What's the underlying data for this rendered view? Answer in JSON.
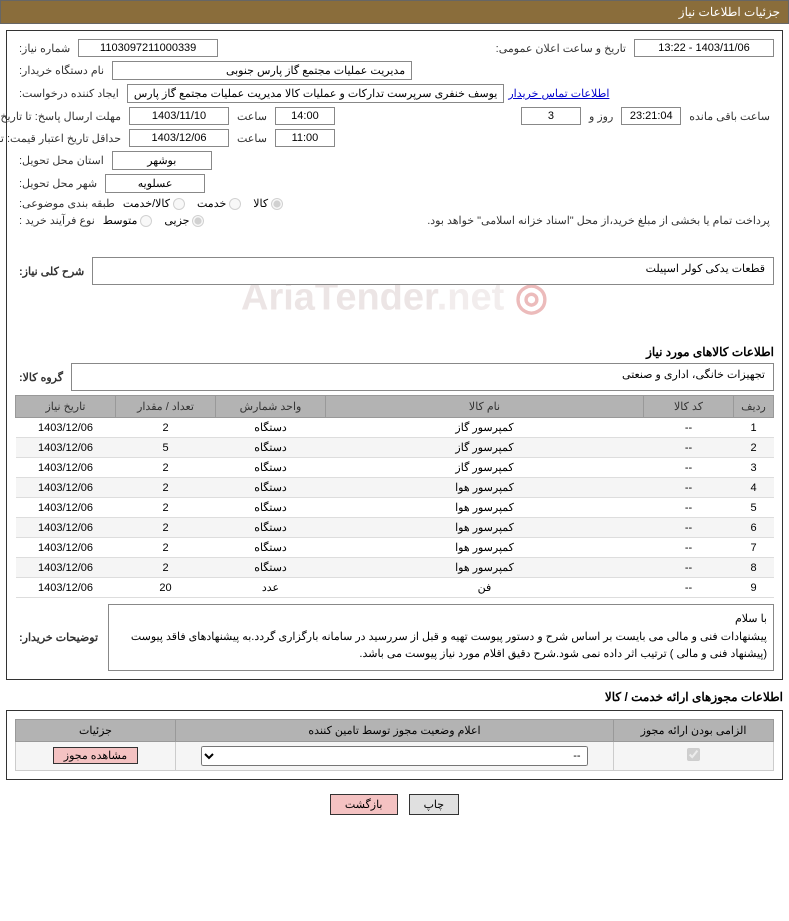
{
  "header": {
    "title": "جزئیات اطلاعات نیاز"
  },
  "form": {
    "need_number_label": "شماره نیاز:",
    "need_number": "1103097211000339",
    "announce_datetime_label": "تاریخ و ساعت اعلان عمومی:",
    "announce_datetime": "1403/11/06 - 13:22",
    "buyer_device_label": "نام دستگاه خریدار:",
    "buyer_device": "مدیریت عملیات مجتمع گاز پارس جنوبی",
    "requester_label": "ایجاد کننده درخواست:",
    "requester": "یوسف خنفری سرپرست تدارکات و عملیات کالا مدیریت عملیات مجتمع گاز پارس",
    "contact_link": "اطلاعات تماس خریدار",
    "deadline_label": "مهلت ارسال پاسخ: تا تاریخ:",
    "deadline_date": "1403/11/10",
    "time_label": "ساعت",
    "deadline_time": "14:00",
    "days_remain": "3",
    "days_label": "روز و",
    "hours_remain": "23:21:04",
    "hours_label": "ساعت باقی مانده",
    "min_validity_label": "حداقل تاریخ اعتبار قیمت: تا تاریخ:",
    "min_validity_date": "1403/12/06",
    "min_validity_time": "11:00",
    "province_label": "استان محل تحویل:",
    "province": "بوشهر",
    "city_label": "شهر محل تحویل:",
    "city": "عسلویه",
    "category_label": "طبقه بندی موضوعی:",
    "category_opts": {
      "goods": "کالا",
      "service": "خدمت",
      "goods_service": "کالا/خدمت"
    },
    "buy_process_label": "نوع فرآیند خرید :",
    "buy_process_opts": {
      "partial": "جزیی",
      "medium": "متوسط"
    },
    "treasury_note": "پرداخت تمام یا بخشی از مبلغ خرید،از محل \"اسناد خزانه اسلامی\" خواهد بود.",
    "overall_desc_label": "شرح کلی نیاز:",
    "overall_desc": "قطعات یدکی کولر اسپیلت",
    "goods_info_title": "اطلاعات کالاهای مورد نیاز",
    "goods_group_label": "گروه کالا:",
    "goods_group": "تجهیزات خانگی، اداری و صنعتی",
    "buyer_notes_label": "توضیحات خریدار:",
    "buyer_notes": "با سلام\nپیشنهادات فنی و مالی می بایست بر اساس شرح و دستور پیوست تهیه و قبل از سررسید در سامانه بارگزاری گردد.به پیشنهادهای فاقد پیوست (پیشنهاد فنی و مالی ) ترتیب اثر داده نمی شود.شرح دقیق اقلام مورد نیاز پیوست می باشد."
  },
  "watermark_text": "AriaTender.net",
  "table": {
    "headers": {
      "row": "ردیف",
      "code": "کد کالا",
      "name": "نام کالا",
      "unit": "واحد شمارش",
      "qty": "تعداد / مقدار",
      "date": "تاریخ نیاز"
    },
    "rows": [
      {
        "n": "1",
        "code": "--",
        "name": "کمپرسور گاز",
        "unit": "دستگاه",
        "qty": "2",
        "date": "1403/12/06"
      },
      {
        "n": "2",
        "code": "--",
        "name": "کمپرسور گاز",
        "unit": "دستگاه",
        "qty": "5",
        "date": "1403/12/06"
      },
      {
        "n": "3",
        "code": "--",
        "name": "کمپرسور گاز",
        "unit": "دستگاه",
        "qty": "2",
        "date": "1403/12/06"
      },
      {
        "n": "4",
        "code": "--",
        "name": "کمپرسور هوا",
        "unit": "دستگاه",
        "qty": "2",
        "date": "1403/12/06"
      },
      {
        "n": "5",
        "code": "--",
        "name": "کمپرسور هوا",
        "unit": "دستگاه",
        "qty": "2",
        "date": "1403/12/06"
      },
      {
        "n": "6",
        "code": "--",
        "name": "کمپرسور هوا",
        "unit": "دستگاه",
        "qty": "2",
        "date": "1403/12/06"
      },
      {
        "n": "7",
        "code": "--",
        "name": "کمپرسور هوا",
        "unit": "دستگاه",
        "qty": "2",
        "date": "1403/12/06"
      },
      {
        "n": "8",
        "code": "--",
        "name": "کمپرسور هوا",
        "unit": "دستگاه",
        "qty": "2",
        "date": "1403/12/06"
      },
      {
        "n": "9",
        "code": "--",
        "name": "فن",
        "unit": "عدد",
        "qty": "20",
        "date": "1403/12/06"
      }
    ]
  },
  "license": {
    "section_title": "اطلاعات مجوزهای ارائه خدمت / کالا",
    "headers": {
      "required": "الزامی بودن ارائه مجوز",
      "status": "اعلام وضعیت مجوز توسط تامین کننده",
      "details": "جزئیات"
    },
    "select_placeholder": "--",
    "view_btn": "مشاهده مجوز"
  },
  "buttons": {
    "print": "چاپ",
    "back": "بازگشت"
  },
  "colors": {
    "header_bg": "#8a6d3b",
    "th_bg": "#b3b3b3",
    "btn_back_bg": "#f4c2c2"
  }
}
